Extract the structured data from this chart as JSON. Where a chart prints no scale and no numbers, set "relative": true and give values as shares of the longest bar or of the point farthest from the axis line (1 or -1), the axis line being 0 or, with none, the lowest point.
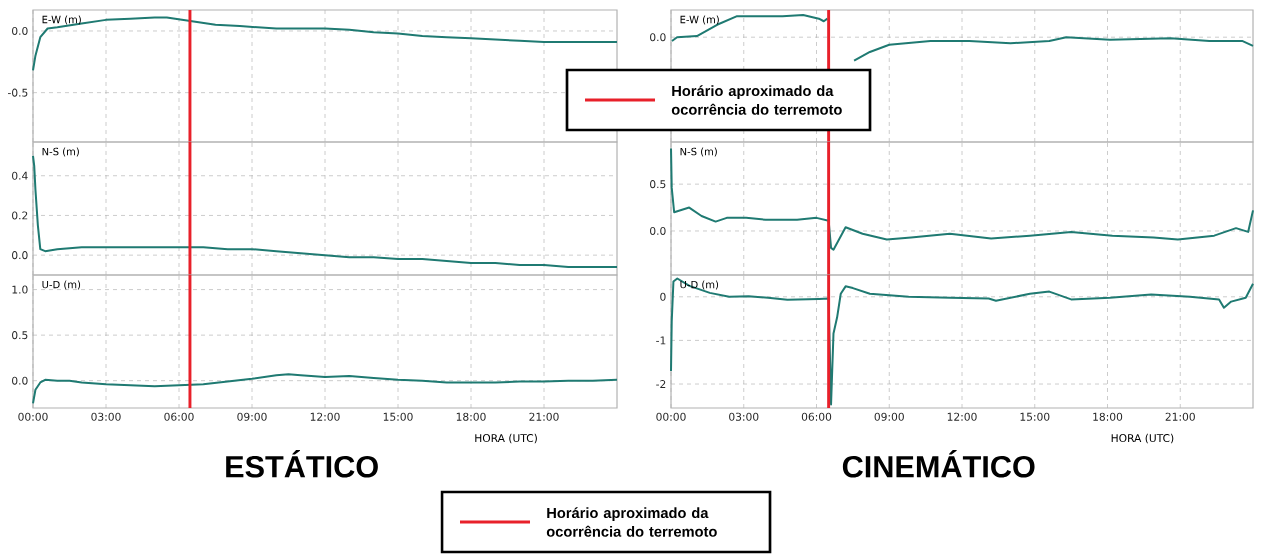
{
  "chart_data": [
    {
      "type": "line",
      "ylabel": "E-W (m)",
      "color": "#1f7a72",
      "grid": true,
      "tick_labels": "y",
      "xlim": [
        0,
        24
      ],
      "ylim": [
        -0.9,
        0.17
      ],
      "xticks": [
        0,
        3,
        6,
        9,
        12,
        15,
        18,
        21
      ],
      "yticks": [
        {
          "value": 0,
          "label": "0.0"
        },
        {
          "value": -0.5,
          "label": "-0.5"
        }
      ],
      "x": [
        0,
        0.1,
        0.3,
        0.6,
        1,
        2,
        3,
        4,
        5,
        5.5,
        6.5,
        7.5,
        8.5,
        10,
        11,
        12,
        13,
        14,
        15,
        16,
        17,
        18,
        19,
        20,
        21,
        22,
        23,
        24
      ],
      "values": [
        -0.32,
        -0.2,
        -0.05,
        0.02,
        0.03,
        0.06,
        0.09,
        0.1,
        0.11,
        0.11,
        0.08,
        0.05,
        0.04,
        0.02,
        0.02,
        0.02,
        0.01,
        -0.01,
        -0.02,
        -0.04,
        -0.05,
        -0.06,
        -0.07,
        -0.08,
        -0.09,
        -0.09,
        -0.09,
        -0.09
      ],
      "ref_lines": [
        {
          "axis": "x",
          "value": 6.45,
          "color": "#e8202a",
          "label": "Horário aproximado da ocorrência do terremoto"
        }
      ]
    },
    {
      "type": "line",
      "ylabel": "N-S (m)",
      "color": "#1f7a72",
      "grid": true,
      "tick_labels": "y",
      "xlim": [
        0,
        24
      ],
      "ylim": [
        -0.1,
        0.57
      ],
      "xticks": [
        0,
        3,
        6,
        9,
        12,
        15,
        18,
        21
      ],
      "yticks": [
        {
          "value": 0,
          "label": "0.0"
        },
        {
          "value": 0.2,
          "label": "0.2"
        },
        {
          "value": 0.4,
          "label": "0.4"
        }
      ],
      "x": [
        0,
        0.05,
        0.1,
        0.2,
        0.3,
        0.5,
        1,
        2,
        3,
        4,
        5,
        6,
        7,
        8,
        9,
        10,
        11,
        12,
        13,
        14,
        15,
        16,
        17,
        18,
        19,
        20,
        21,
        22,
        23,
        24
      ],
      "values": [
        0.5,
        0.45,
        0.33,
        0.15,
        0.03,
        0.02,
        0.03,
        0.04,
        0.04,
        0.04,
        0.04,
        0.04,
        0.04,
        0.03,
        0.03,
        0.02,
        0.01,
        0.0,
        -0.01,
        -0.01,
        -0.02,
        -0.02,
        -0.03,
        -0.04,
        -0.04,
        -0.05,
        -0.05,
        -0.06,
        -0.06,
        -0.06
      ],
      "ref_lines": [
        {
          "axis": "x",
          "value": 6.45,
          "color": "#e8202a"
        }
      ]
    },
    {
      "type": "line",
      "title": "ESTÁTICO",
      "xlabel": "HORA (UTC)",
      "ylabel": "U-D (m)",
      "color": "#1f7a72",
      "grid": true,
      "xlim": [
        0,
        24
      ],
      "ylim": [
        -0.3,
        1.16
      ],
      "xticks": [
        {
          "value": 0,
          "label": "00:00"
        },
        {
          "value": 3,
          "label": "03:00"
        },
        {
          "value": 6,
          "label": "06:00"
        },
        {
          "value": 9,
          "label": "09:00"
        },
        {
          "value": 12,
          "label": "12:00"
        },
        {
          "value": 15,
          "label": "15:00"
        },
        {
          "value": 18,
          "label": "18:00"
        },
        {
          "value": 21,
          "label": "21:00"
        }
      ],
      "yticks": [
        {
          "value": 0,
          "label": "0.0"
        },
        {
          "value": 0.5,
          "label": "0.5"
        },
        {
          "value": 1,
          "label": "1.0"
        }
      ],
      "x": [
        0,
        0.1,
        0.3,
        0.5,
        1,
        1.5,
        2,
        3,
        4,
        5,
        6,
        7,
        8,
        9,
        10,
        10.5,
        11,
        12,
        13,
        14,
        15,
        16,
        17,
        18,
        19,
        20,
        21,
        22,
        23,
        24
      ],
      "values": [
        -0.25,
        -0.1,
        -0.02,
        0.01,
        0.0,
        0.0,
        -0.02,
        -0.04,
        -0.05,
        -0.06,
        -0.05,
        -0.04,
        -0.01,
        0.02,
        0.06,
        0.07,
        0.06,
        0.04,
        0.05,
        0.03,
        0.01,
        0.0,
        -0.02,
        -0.02,
        -0.02,
        -0.01,
        -0.01,
        0.0,
        0.0,
        0.01
      ],
      "ref_lines": [
        {
          "axis": "x",
          "value": 6.45,
          "color": "#e8202a"
        }
      ]
    },
    {
      "type": "line",
      "ylabel": "E-W (m)",
      "color": "#1f7a72",
      "grid": true,
      "tick_labels": "y",
      "xlim": [
        0,
        24
      ],
      "relative": true,
      "annotations": [
        "0.0"
      ],
      "xticks": [
        0,
        3,
        6,
        9,
        12,
        15,
        18,
        21
      ],
      "x": [
        0.04,
        0.25,
        1.07,
        1.9,
        2.7,
        3.5,
        4.6,
        5.45,
        6.1,
        6.3,
        6.45,
        6.5,
        7.55,
        8.2,
        9.0,
        10.7,
        12.3,
        14.0,
        15.6,
        16.3,
        18.1,
        20.6,
        22.2,
        23.55,
        24
      ],
      "values": [
        -0.16,
        0.0,
        0.05,
        0.53,
        0.89,
        0.89,
        0.89,
        0.95,
        0.79,
        0.68,
        0.79,
        null,
        -1,
        -0.63,
        -0.32,
        -0.16,
        -0.16,
        -0.26,
        -0.16,
        0.0,
        -0.11,
        -0.05,
        -0.16,
        -0.16,
        -0.37
      ],
      "ref_lines": [
        {
          "axis": "x",
          "value": 6.5,
          "color": "#e8202a",
          "label": "Horário aproximado da ocorrência do terremoto"
        }
      ]
    },
    {
      "type": "line",
      "ylabel": "N-S (m)",
      "color": "#1f7a72",
      "grid": true,
      "tick_labels": "y",
      "xlim": [
        0,
        24
      ],
      "ylim": [
        -0.47,
        0.95
      ],
      "xticks": [
        0,
        3,
        6,
        9,
        12,
        15,
        18,
        21
      ],
      "yticks": [
        {
          "value": 0,
          "label": "0.0"
        },
        {
          "value": 0.5,
          "label": "0.5"
        }
      ],
      "x": [
        0,
        0.03,
        0.13,
        0.75,
        1.26,
        1.84,
        2.3,
        3.1,
        3.9,
        5.2,
        6.0,
        6.5,
        6.6,
        6.7,
        7.2,
        7.9,
        8.9,
        9.9,
        11.5,
        13.2,
        14.8,
        16.5,
        18.2,
        19.9,
        20.9,
        22.4,
        23.3,
        23.8,
        24
      ],
      "values": [
        0.88,
        0.46,
        0.2,
        0.25,
        0.16,
        0.1,
        0.14,
        0.14,
        0.12,
        0.12,
        0.14,
        0.11,
        -0.18,
        -0.2,
        0.04,
        -0.03,
        -0.09,
        -0.07,
        -0.03,
        -0.08,
        -0.05,
        -0.01,
        -0.05,
        -0.07,
        -0.09,
        -0.05,
        0.03,
        -0.01,
        0.22
      ],
      "ref_lines": [
        {
          "axis": "x",
          "value": 6.5,
          "color": "#e8202a"
        }
      ]
    },
    {
      "type": "line",
      "title": "CINEMÁTICO",
      "xlabel": "HORA (UTC)",
      "ylabel": "U-D (m)",
      "color": "#1f7a72",
      "grid": true,
      "xlim": [
        0,
        24
      ],
      "ylim": [
        -2.55,
        0.5
      ],
      "xticks": [
        {
          "value": 0,
          "label": "00:00"
        },
        {
          "value": 3,
          "label": "03:00"
        },
        {
          "value": 6,
          "label": "06:00"
        },
        {
          "value": 9,
          "label": "09:00"
        },
        {
          "value": 12,
          "label": "12:00"
        },
        {
          "value": 15,
          "label": "15:00"
        },
        {
          "value": 18,
          "label": "18:00"
        },
        {
          "value": 21,
          "label": "21:00"
        }
      ],
      "yticks": [
        0,
        -1,
        -2
      ],
      "x": [
        0,
        0.03,
        0.1,
        0.26,
        0.76,
        1.6,
        2.4,
        3.2,
        4.0,
        4.8,
        6.1,
        6.5,
        6.6,
        6.7,
        6.85,
        7.0,
        7.2,
        7.5,
        8.2,
        9.8,
        11.5,
        13.1,
        13.4,
        14.8,
        15.6,
        16.5,
        18.1,
        19.8,
        21.4,
        22.6,
        22.8,
        23.1,
        23.7,
        24
      ],
      "values": [
        -1.7,
        -0.56,
        0.35,
        0.42,
        0.25,
        0.09,
        0.0,
        0.01,
        -0.02,
        -0.07,
        -0.05,
        -0.04,
        -2.47,
        -0.84,
        -0.47,
        0.07,
        0.24,
        0.2,
        0.07,
        0.0,
        -0.02,
        -0.04,
        -0.09,
        0.07,
        0.12,
        -0.06,
        -0.02,
        0.05,
        0.0,
        -0.06,
        -0.25,
        -0.11,
        -0.02,
        0.3
      ],
      "ref_lines": [
        {
          "axis": "x",
          "value": 6.5,
          "color": "#e8202a"
        }
      ]
    }
  ]
}
